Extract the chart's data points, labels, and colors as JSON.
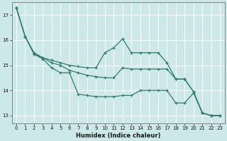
{
  "xlabel": "Humidex (Indice chaleur)",
  "bg_color": "#cde8e8",
  "grid_color": "#ffffff",
  "line_color": "#2e7d6e",
  "x": [
    0,
    1,
    2,
    3,
    4,
    5,
    6,
    7,
    8,
    9,
    10,
    11,
    12,
    13,
    14,
    15,
    16,
    17,
    18,
    19,
    20,
    21,
    22,
    23
  ],
  "series1": [
    17.3,
    16.15,
    15.5,
    15.3,
    15.2,
    15.1,
    15.0,
    14.95,
    14.9,
    14.9,
    15.5,
    15.7,
    16.05,
    15.5,
    15.5,
    15.5,
    15.5,
    15.1,
    14.45,
    14.45,
    13.95,
    13.1,
    13.0,
    13.0
  ],
  "series2": [
    17.3,
    16.15,
    15.45,
    15.3,
    15.1,
    15.0,
    14.8,
    14.7,
    14.6,
    14.55,
    14.5,
    14.5,
    14.9,
    14.85,
    14.85,
    14.85,
    14.85,
    14.85,
    14.45,
    14.45,
    13.95,
    13.1,
    13.0,
    13.0
  ],
  "series3": [
    17.3,
    16.15,
    15.45,
    15.25,
    14.9,
    14.7,
    14.7,
    13.85,
    13.8,
    13.75,
    13.75,
    13.75,
    13.8,
    13.8,
    14.0,
    14.0,
    14.0,
    14.0,
    13.5,
    13.5,
    13.9,
    13.1,
    13.0,
    13.0
  ],
  "ylim": [
    12.7,
    17.5
  ],
  "yticks": [
    13,
    14,
    15,
    16,
    17
  ],
  "xticks": [
    0,
    1,
    2,
    3,
    4,
    5,
    6,
    7,
    8,
    9,
    10,
    11,
    12,
    13,
    14,
    15,
    16,
    17,
    18,
    19,
    20,
    21,
    22,
    23
  ]
}
